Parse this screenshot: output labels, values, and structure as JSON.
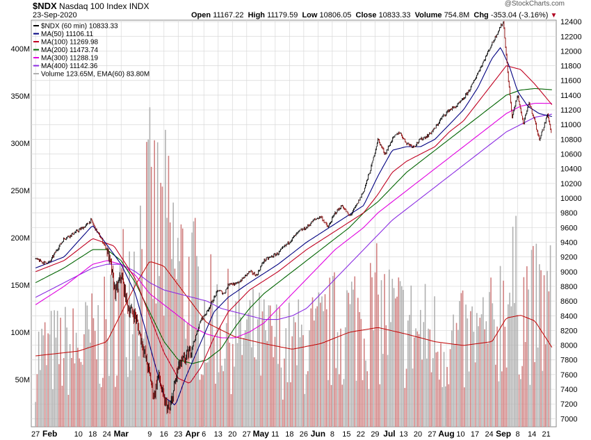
{
  "header": {
    "symbol": "$NDX",
    "name": "Nasdaq 100 Index",
    "exchange": "INDX",
    "date": "23-Sep-2020",
    "open_label": "Open",
    "open": "11167.22",
    "high_label": "High",
    "high": "11179.59",
    "low_label": "Low",
    "low": "10806.05",
    "close_label": "Close",
    "close": "10833.33",
    "volume_label": "Volume",
    "volume": "754.8M",
    "chg_label": "Chg",
    "chg": "-353.04 (-3.16%)",
    "watermark": "@StockCharts.com"
  },
  "colors": {
    "price": "#000000",
    "candle_down": "#8b0000",
    "ma50": "#000080",
    "ma100": "#c00020",
    "ma200": "#006400",
    "ma300": "#e000e0",
    "ma400": "#8a2be2",
    "volume_up": "#b0b0b0",
    "volume_down": "#d08080",
    "ema": "#c00000",
    "grid": "#d8d8d8"
  },
  "chart_data": {
    "type": "line",
    "title": "$NDX Nasdaq 100 Index INDX",
    "legend": [
      {
        "key": "price",
        "label": "$NDX (60 min) 10833.33"
      },
      {
        "key": "ma50",
        "label": "MA(50) 11106.11"
      },
      {
        "key": "ma100",
        "label": "MA(100) 11269.98"
      },
      {
        "key": "ma200",
        "label": "MA(200) 11473.74"
      },
      {
        "key": "ma300",
        "label": "MA(300) 11288.19"
      },
      {
        "key": "ma400",
        "label": "MA(400) 11142.36"
      },
      {
        "key": "volume",
        "label": "Volume 123.65M, EMA(60) 83.80M"
      }
    ],
    "legend_position": "top-left",
    "y_ticks": [
      7000,
      7200,
      7400,
      7600,
      7800,
      8000,
      8200,
      8400,
      8600,
      8800,
      9000,
      9200,
      9400,
      9600,
      9800,
      10000,
      10200,
      10400,
      10600,
      10800,
      11000,
      11200,
      11400,
      11600,
      11800,
      12000,
      12200,
      12400
    ],
    "ylim": [
      6890,
      12420
    ],
    "volume_ticks": [
      "50M",
      "100M",
      "150M",
      "200M",
      "250M",
      "300M",
      "350M",
      "400M"
    ],
    "volume_tick_values": [
      50,
      100,
      150,
      200,
      250,
      300,
      350,
      400
    ],
    "volume_ylim": [
      0,
      430
    ],
    "x_ticks": [
      "27",
      "Feb",
      "10",
      "18",
      "24",
      "Mar",
      "9",
      "16",
      "23",
      "Apr",
      "6",
      "13",
      "20",
      "27",
      "May",
      "11",
      "18",
      "26",
      "Jun",
      "8",
      "15",
      "22",
      "29",
      "Jul",
      "13",
      "20",
      "27",
      "Aug",
      "10",
      "17",
      "24",
      "Sep",
      "8",
      "14",
      "21"
    ],
    "x_tick_index": [
      0,
      1,
      3,
      4,
      5,
      6,
      8,
      9,
      10,
      11,
      11.8,
      12.8,
      13.8,
      14.8,
      15.8,
      16.8,
      17.8,
      18.8,
      19.8,
      20.8,
      21.8,
      22.8,
      23.8,
      24.8,
      25.8,
      26.8,
      27.8,
      28.8,
      29.8,
      30.8,
      31.8,
      32.8,
      33.8,
      34.8,
      35.8
    ],
    "x_range": [
      -0.3,
      36.5
    ],
    "grid": true,
    "price_keys": [
      [
        0,
        9170
      ],
      [
        0.6,
        9120
      ],
      [
        1,
        9130
      ],
      [
        1.5,
        9300
      ],
      [
        2,
        9450
      ],
      [
        2.5,
        9500
      ],
      [
        3,
        9560
      ],
      [
        3.5,
        9620
      ],
      [
        3.9,
        9700
      ],
      [
        4.2,
        9580
      ],
      [
        4.6,
        9450
      ],
      [
        5,
        9300
      ],
      [
        5.3,
        9050
      ],
      [
        5.6,
        8700
      ],
      [
        6,
        8950
      ],
      [
        6.5,
        8500
      ],
      [
        7,
        8400
      ],
      [
        7.5,
        8000
      ],
      [
        8,
        7600
      ],
      [
        8.3,
        7300
      ],
      [
        8.6,
        7600
      ],
      [
        9,
        7250
      ],
      [
        9.4,
        7100
      ],
      [
        9.7,
        7400
      ],
      [
        10,
        7700
      ],
      [
        10.4,
        7800
      ],
      [
        10.8,
        7900
      ],
      [
        11.2,
        8100
      ],
      [
        11.6,
        8350
      ],
      [
        12,
        8450
      ],
      [
        12.4,
        8600
      ],
      [
        12.8,
        8750
      ],
      [
        13.2,
        8700
      ],
      [
        13.6,
        8850
      ],
      [
        14,
        8820
      ],
      [
        14.5,
        8900
      ],
      [
        15,
        9000
      ],
      [
        15.5,
        8950
      ],
      [
        16,
        9150
      ],
      [
        16.5,
        9200
      ],
      [
        17,
        9250
      ],
      [
        17.5,
        9350
      ],
      [
        18,
        9450
      ],
      [
        18.5,
        9550
      ],
      [
        19,
        9600
      ],
      [
        19.5,
        9700
      ],
      [
        20,
        9750
      ],
      [
        20.5,
        9600
      ],
      [
        21,
        9800
      ],
      [
        21.5,
        9900
      ],
      [
        22,
        9750
      ],
      [
        22.5,
        9900
      ],
      [
        23,
        10100
      ],
      [
        23.5,
        10400
      ],
      [
        24,
        10800
      ],
      [
        24.5,
        10600
      ],
      [
        25,
        10800
      ],
      [
        25.5,
        10900
      ],
      [
        26,
        10750
      ],
      [
        26.5,
        10700
      ],
      [
        27,
        10800
      ],
      [
        27.5,
        10850
      ],
      [
        28,
        10950
      ],
      [
        28.5,
        11100
      ],
      [
        29,
        11200
      ],
      [
        29.5,
        11250
      ],
      [
        30,
        11350
      ],
      [
        30.5,
        11500
      ],
      [
        31,
        11700
      ],
      [
        31.5,
        11900
      ],
      [
        32,
        12100
      ],
      [
        32.5,
        12300
      ],
      [
        32.8,
        12400
      ],
      [
        33.1,
        11700
      ],
      [
        33.4,
        11100
      ],
      [
        33.8,
        11400
      ],
      [
        34.2,
        11000
      ],
      [
        34.6,
        11300
      ],
      [
        35,
        11050
      ],
      [
        35.3,
        10800
      ],
      [
        35.6,
        10950
      ],
      [
        35.9,
        11150
      ],
      [
        36.2,
        10833
      ]
    ],
    "ma_keys": {
      "ma50": [
        [
          0,
          9050
        ],
        [
          2,
          9200
        ],
        [
          4,
          9630
        ],
        [
          6,
          9100
        ],
        [
          7,
          8700
        ],
        [
          8,
          8000
        ],
        [
          9,
          7300
        ],
        [
          9.8,
          7180
        ],
        [
          10.5,
          7550
        ],
        [
          11.5,
          8000
        ],
        [
          12.5,
          8450
        ],
        [
          13.5,
          8650
        ],
        [
          15,
          8850
        ],
        [
          17,
          9100
        ],
        [
          19,
          9400
        ],
        [
          21,
          9650
        ],
        [
          23,
          9900
        ],
        [
          24,
          10300
        ],
        [
          25,
          10650
        ],
        [
          26,
          10700
        ],
        [
          27,
          10700
        ],
        [
          28,
          10800
        ],
        [
          29,
          11000
        ],
        [
          30,
          11200
        ],
        [
          31,
          11500
        ],
        [
          32,
          11900
        ],
        [
          32.6,
          12050
        ],
        [
          33.2,
          11800
        ],
        [
          33.8,
          11450
        ],
        [
          34.5,
          11250
        ],
        [
          35.3,
          11150
        ],
        [
          36.2,
          11110
        ]
      ],
      "ma100": [
        [
          0,
          9000
        ],
        [
          2,
          9150
        ],
        [
          4,
          9450
        ],
        [
          5.5,
          9350
        ],
        [
          7,
          8900
        ],
        [
          8,
          8400
        ],
        [
          9,
          7900
        ],
        [
          10,
          7550
        ],
        [
          10.8,
          7480
        ],
        [
          11.6,
          7700
        ],
        [
          12.5,
          8100
        ],
        [
          13.5,
          8450
        ],
        [
          15,
          8750
        ],
        [
          17,
          9000
        ],
        [
          19,
          9300
        ],
        [
          21,
          9550
        ],
        [
          23,
          9800
        ],
        [
          24,
          10050
        ],
        [
          25,
          10350
        ],
        [
          26,
          10500
        ],
        [
          27,
          10600
        ],
        [
          28,
          10700
        ],
        [
          29,
          10900
        ],
        [
          30,
          11050
        ],
        [
          31,
          11300
        ],
        [
          32,
          11550
        ],
        [
          33,
          11800
        ],
        [
          34,
          11750
        ],
        [
          35,
          11550
        ],
        [
          36.2,
          11270
        ]
      ],
      "ma200": [
        [
          0,
          8850
        ],
        [
          2,
          9050
        ],
        [
          4,
          9300
        ],
        [
          5,
          9300
        ],
        [
          6,
          9150
        ],
        [
          7,
          8850
        ],
        [
          8,
          8450
        ],
        [
          9,
          8050
        ],
        [
          10,
          7800
        ],
        [
          11,
          7750
        ],
        [
          12,
          7800
        ],
        [
          13,
          7950
        ],
        [
          14,
          8250
        ],
        [
          15,
          8500
        ],
        [
          16,
          8700
        ],
        [
          17,
          8850
        ],
        [
          18,
          9000
        ],
        [
          19,
          9150
        ],
        [
          20,
          9300
        ],
        [
          21,
          9450
        ],
        [
          22,
          9600
        ],
        [
          23,
          9800
        ],
        [
          24,
          9950
        ],
        [
          25,
          10150
        ],
        [
          26,
          10350
        ],
        [
          27,
          10500
        ],
        [
          28,
          10650
        ],
        [
          29,
          10800
        ],
        [
          30,
          10950
        ],
        [
          31,
          11100
        ],
        [
          32,
          11250
        ],
        [
          33,
          11400
        ],
        [
          34,
          11470
        ],
        [
          35,
          11490
        ],
        [
          36.2,
          11474
        ]
      ],
      "ma300": [
        [
          0,
          8550
        ],
        [
          2,
          8800
        ],
        [
          3,
          8950
        ],
        [
          4,
          9100
        ],
        [
          5,
          9150
        ],
        [
          6,
          9100
        ],
        [
          7,
          8950
        ],
        [
          8,
          8700
        ],
        [
          9,
          8550
        ],
        [
          10,
          8400
        ],
        [
          11,
          8250
        ],
        [
          12,
          8150
        ],
        [
          13,
          8100
        ],
        [
          14,
          8100
        ],
        [
          15,
          8180
        ],
        [
          16,
          8300
        ],
        [
          17,
          8500
        ],
        [
          18,
          8700
        ],
        [
          19,
          8900
        ],
        [
          20,
          9100
        ],
        [
          21,
          9300
        ],
        [
          22,
          9450
        ],
        [
          23,
          9600
        ],
        [
          24,
          9800
        ],
        [
          25,
          9950
        ],
        [
          26,
          10100
        ],
        [
          27,
          10250
        ],
        [
          28,
          10400
        ],
        [
          29,
          10550
        ],
        [
          30,
          10700
        ],
        [
          31,
          10850
        ],
        [
          32,
          11000
        ],
        [
          33,
          11150
        ],
        [
          34,
          11250
        ],
        [
          35,
          11290
        ],
        [
          36.2,
          11288
        ]
      ],
      "ma400": [
        [
          0,
          8650
        ],
        [
          2,
          8850
        ],
        [
          3,
          8950
        ],
        [
          4,
          9050
        ],
        [
          5,
          9100
        ],
        [
          6,
          9100
        ],
        [
          7,
          9000
        ],
        [
          8,
          8850
        ],
        [
          9,
          8750
        ],
        [
          10,
          8700
        ],
        [
          11,
          8650
        ],
        [
          12,
          8600
        ],
        [
          13,
          8500
        ],
        [
          14,
          8450
        ],
        [
          15,
          8400
        ],
        [
          16,
          8350
        ],
        [
          17,
          8350
        ],
        [
          18,
          8400
        ],
        [
          19,
          8500
        ],
        [
          20,
          8700
        ],
        [
          21,
          8900
        ],
        [
          22,
          9100
        ],
        [
          23,
          9300
        ],
        [
          24,
          9500
        ],
        [
          25,
          9700
        ],
        [
          26,
          9850
        ],
        [
          27,
          10000
        ],
        [
          28,
          10150
        ],
        [
          29,
          10300
        ],
        [
          30,
          10450
        ],
        [
          31,
          10600
        ],
        [
          32,
          10750
        ],
        [
          33,
          10900
        ],
        [
          34,
          11000
        ],
        [
          35,
          11100
        ],
        [
          36.2,
          11142
        ]
      ]
    },
    "volume_keys": [
      [
        0,
        75
      ],
      [
        3,
        80
      ],
      [
        5,
        95
      ],
      [
        6,
        130
      ],
      [
        7,
        170
      ],
      [
        8,
        200
      ],
      [
        9,
        190
      ],
      [
        10,
        160
      ],
      [
        11,
        140
      ],
      [
        12,
        110
      ],
      [
        14,
        95
      ],
      [
        16,
        85
      ],
      [
        18,
        80
      ],
      [
        20,
        90
      ],
      [
        22,
        110
      ],
      [
        24,
        115
      ],
      [
        26,
        100
      ],
      [
        28,
        90
      ],
      [
        30,
        85
      ],
      [
        32,
        95
      ],
      [
        33,
        140
      ],
      [
        34,
        130
      ],
      [
        35,
        115
      ],
      [
        36.2,
        120
      ]
    ],
    "ema_keys": [
      [
        0,
        75
      ],
      [
        3,
        80
      ],
      [
        5,
        90
      ],
      [
        6,
        120
      ],
      [
        7,
        150
      ],
      [
        8,
        175
      ],
      [
        9,
        170
      ],
      [
        10,
        150
      ],
      [
        11,
        130
      ],
      [
        12,
        110
      ],
      [
        14,
        95
      ],
      [
        16,
        88
      ],
      [
        18,
        82
      ],
      [
        20,
        88
      ],
      [
        22,
        100
      ],
      [
        24,
        105
      ],
      [
        26,
        98
      ],
      [
        28,
        90
      ],
      [
        30,
        86
      ],
      [
        32,
        90
      ],
      [
        33,
        115
      ],
      [
        34,
        118
      ],
      [
        35,
        112
      ],
      [
        36.2,
        84
      ]
    ]
  }
}
